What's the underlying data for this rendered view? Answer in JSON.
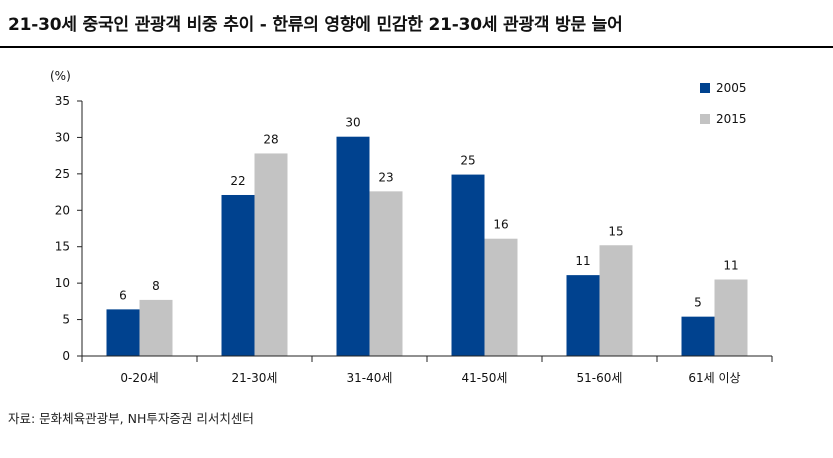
{
  "header": {
    "title": "21-30세 중국인 관광객 비중 추이 - 한류의 영향에 민감한 21-30세 관광객 방문 늘어"
  },
  "footer": {
    "source": "자료: 문화체육관광부, NH투자증권 리서치센터"
  },
  "chart_data": {
    "type": "bar",
    "title": "",
    "ylabel": "(%)",
    "xlabel": "",
    "ylim": [
      0,
      35
    ],
    "yticks": [
      0,
      5,
      10,
      15,
      20,
      25,
      30,
      35
    ],
    "categories": [
      "0-20세",
      "21-30세",
      "31-40세",
      "41-50세",
      "51-60세",
      "61세 이상"
    ],
    "series": [
      {
        "name": "2005",
        "values": [
          6.4,
          22.1,
          30.1,
          24.9,
          11.1,
          5.4
        ],
        "labels": [
          "6",
          "22",
          "30",
          "25",
          "11",
          "5"
        ],
        "color": "#00428f"
      },
      {
        "name": "2015",
        "values": [
          7.7,
          27.8,
          22.6,
          16.1,
          15.2,
          10.5
        ],
        "labels": [
          "8",
          "28",
          "23",
          "16",
          "15",
          "11"
        ],
        "color": "#c3c3c3"
      }
    ],
    "legend_position": "top-right",
    "grid": false
  }
}
